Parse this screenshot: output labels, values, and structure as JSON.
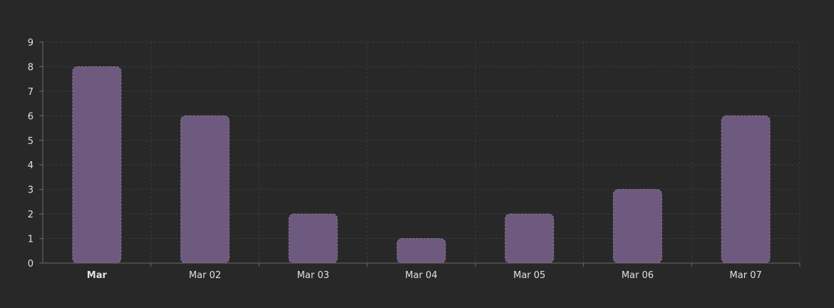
{
  "chart_data": {
    "type": "bar",
    "categories": [
      "Mar",
      "Mar 02",
      "Mar 03",
      "Mar 04",
      "Mar 05",
      "Mar 06",
      "Mar 07"
    ],
    "bold_categories": [
      "Mar"
    ],
    "values": [
      8,
      6,
      2,
      1,
      2,
      3,
      6
    ],
    "ylim": [
      0,
      9
    ],
    "yticks": [
      0,
      1,
      2,
      3,
      4,
      5,
      6,
      7,
      8,
      9
    ],
    "grid": true,
    "title": "",
    "xlabel": "",
    "ylabel": ""
  },
  "colors": {
    "background": "#282828",
    "bar_fill": "#6e5a7e",
    "bar_stroke": "#8a7698",
    "grid": "#3c3c3c",
    "axis": "#6a6a6a",
    "text": "#e0e0e0"
  }
}
